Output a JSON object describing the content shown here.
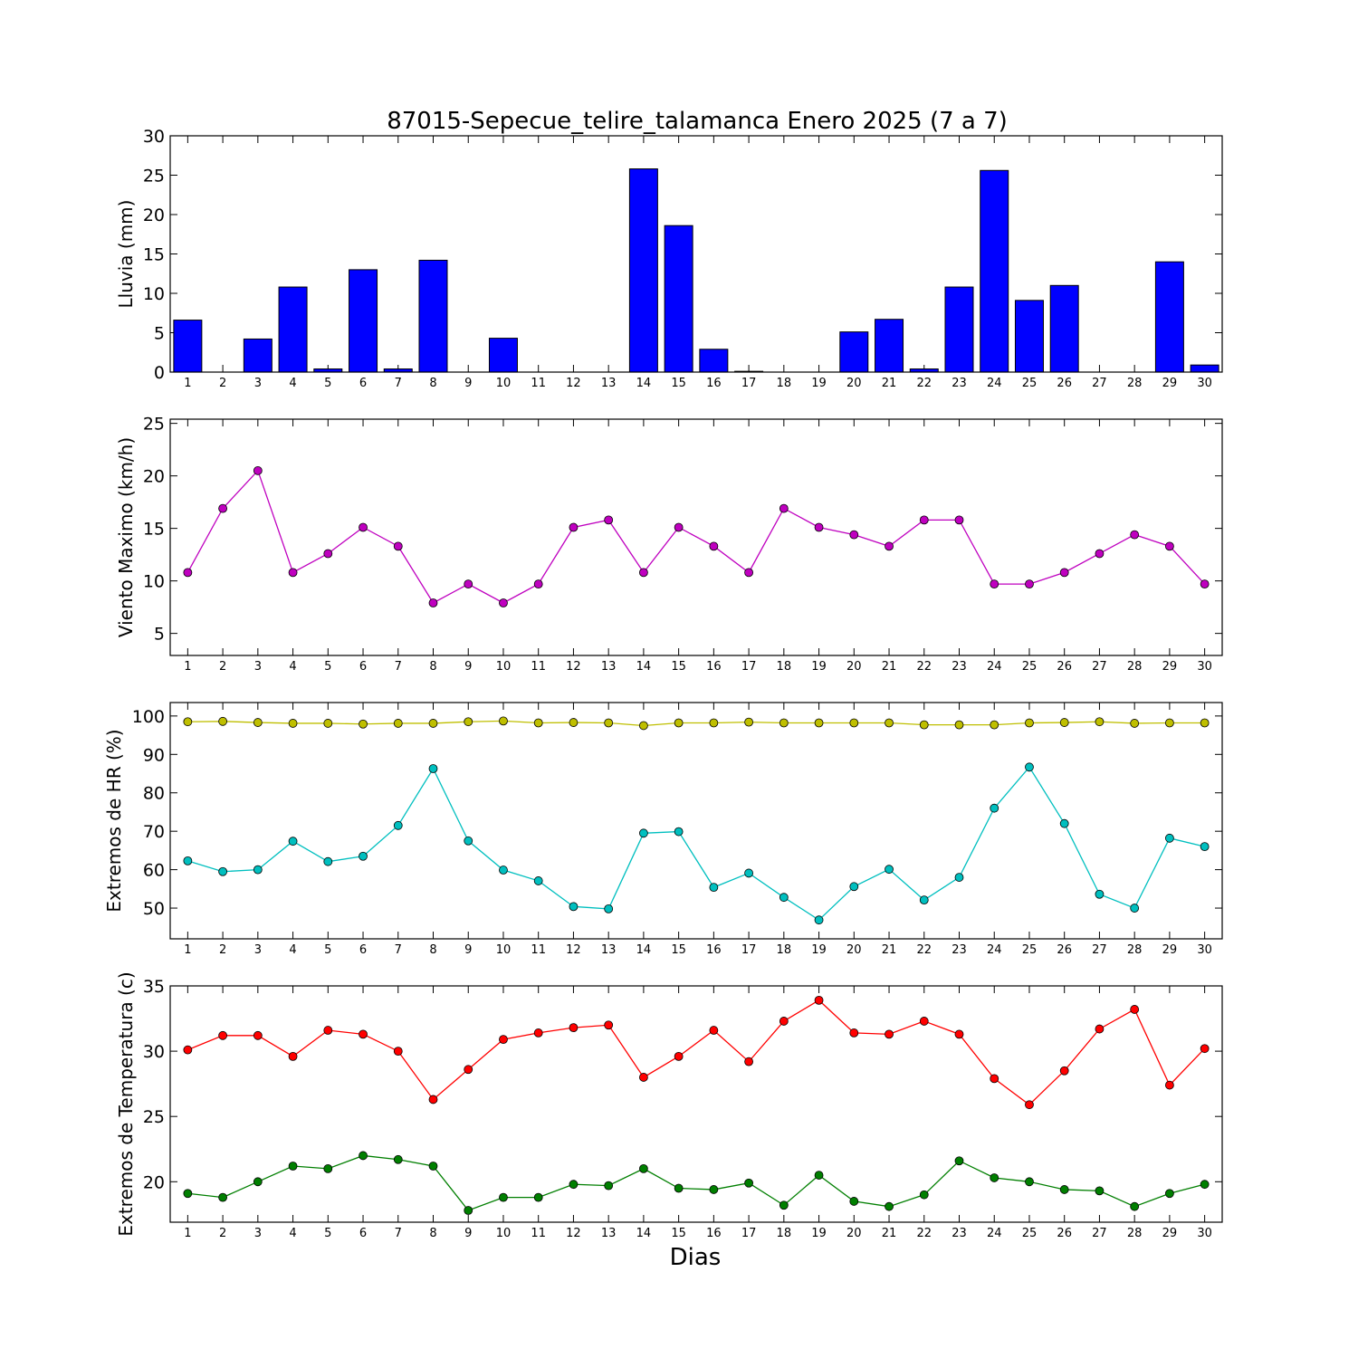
{
  "figure": {
    "title": "87015-Sepecue_telire_talamanca Enero 2025  (7 a 7)",
    "xlabel": "Dias"
  },
  "chart_data": [
    {
      "type": "bar",
      "ylabel": "Lluvia (mm)",
      "ylim": [
        0,
        30
      ],
      "yticks": [
        0,
        5,
        10,
        15,
        20,
        25,
        30
      ],
      "categories": [
        1,
        2,
        3,
        4,
        5,
        6,
        7,
        8,
        9,
        10,
        11,
        12,
        13,
        14,
        15,
        16,
        17,
        18,
        19,
        20,
        21,
        22,
        23,
        24,
        25,
        26,
        27,
        28,
        29,
        30
      ],
      "series": [
        {
          "color": "#0000ff",
          "values": [
            6.6,
            0,
            4.2,
            10.8,
            0.4,
            13,
            0.4,
            14.2,
            0,
            4.3,
            0,
            0,
            0,
            25.8,
            18.6,
            2.9,
            0.1,
            0,
            0,
            5.1,
            6.7,
            0.4,
            10.8,
            25.6,
            9.1,
            11,
            0,
            0,
            14,
            0.9
          ]
        }
      ]
    },
    {
      "type": "line",
      "ylabel": "Viento Maximo (km/h)",
      "ylim": [
        2.9,
        25.4
      ],
      "yticks": [
        5,
        10,
        15,
        20,
        25
      ],
      "x": [
        1,
        2,
        3,
        4,
        5,
        6,
        7,
        8,
        9,
        10,
        11,
        12,
        13,
        14,
        15,
        16,
        17,
        18,
        19,
        20,
        21,
        22,
        23,
        24,
        25,
        26,
        27,
        28,
        29,
        30
      ],
      "series": [
        {
          "color": "#bf00bf",
          "values": [
            10.8,
            16.9,
            20.5,
            10.8,
            12.6,
            15.1,
            13.3,
            7.9,
            9.7,
            7.9,
            9.7,
            15.1,
            15.8,
            10.8,
            15.1,
            13.3,
            10.8,
            16.9,
            15.1,
            14.4,
            13.3,
            15.8,
            15.8,
            9.7,
            9.7,
            10.8,
            12.6,
            14.4,
            13.3,
            9.7
          ]
        }
      ]
    },
    {
      "type": "line",
      "ylabel": "Extremos de HR (%)",
      "ylim": [
        42,
        103.5
      ],
      "yticks": [
        50,
        60,
        70,
        80,
        90,
        100
      ],
      "x": [
        1,
        2,
        3,
        4,
        5,
        6,
        7,
        8,
        9,
        10,
        11,
        12,
        13,
        14,
        15,
        16,
        17,
        18,
        19,
        20,
        21,
        22,
        23,
        24,
        25,
        26,
        27,
        28,
        29,
        30
      ],
      "series": [
        {
          "color": "#bfbf00",
          "values": [
            98.5,
            98.6,
            98.3,
            98.1,
            98.1,
            97.9,
            98.1,
            98.1,
            98.5,
            98.7,
            98.2,
            98.3,
            98.2,
            97.5,
            98.2,
            98.2,
            98.4,
            98.2,
            98.2,
            98.2,
            98.2,
            97.7,
            97.7,
            97.7,
            98.2,
            98.3,
            98.5,
            98.1,
            98.2,
            98.2
          ]
        },
        {
          "color": "#00bfbf",
          "values": [
            62.3,
            59.5,
            60,
            67.4,
            62.1,
            63.5,
            71.5,
            86.3,
            67.5,
            59.9,
            57.1,
            50.4,
            49.8,
            69.5,
            69.9,
            55.4,
            59.1,
            52.8,
            46.9,
            55.6,
            60.1,
            52.1,
            58,
            76,
            86.7,
            72,
            53.6,
            50,
            68.2,
            66
          ]
        }
      ]
    },
    {
      "type": "line",
      "ylabel": "Extremos de Temperatura (c)",
      "ylim": [
        16.9,
        35
      ],
      "yticks": [
        20,
        25,
        30,
        35
      ],
      "x": [
        1,
        2,
        3,
        4,
        5,
        6,
        7,
        8,
        9,
        10,
        11,
        12,
        13,
        14,
        15,
        16,
        17,
        18,
        19,
        20,
        21,
        22,
        23,
        24,
        25,
        26,
        27,
        28,
        29,
        30
      ],
      "series": [
        {
          "color": "#ff0000",
          "values": [
            30.1,
            31.2,
            31.2,
            29.6,
            31.6,
            31.3,
            30,
            26.3,
            28.6,
            30.9,
            31.4,
            31.8,
            32,
            28,
            29.6,
            31.6,
            29.2,
            32.3,
            33.9,
            31.4,
            31.3,
            32.3,
            31.3,
            27.9,
            25.9,
            28.5,
            31.7,
            33.2,
            27.4,
            30.2
          ]
        },
        {
          "color": "#007f00",
          "values": [
            19.1,
            18.8,
            20,
            21.2,
            21,
            22,
            21.7,
            21.2,
            17.8,
            18.8,
            18.8,
            19.8,
            19.7,
            21,
            19.5,
            19.4,
            19.9,
            18.2,
            20.5,
            18.5,
            18.1,
            19,
            21.6,
            20.3,
            20,
            19.4,
            19.3,
            18.1,
            19.1,
            19.8
          ]
        }
      ]
    }
  ]
}
